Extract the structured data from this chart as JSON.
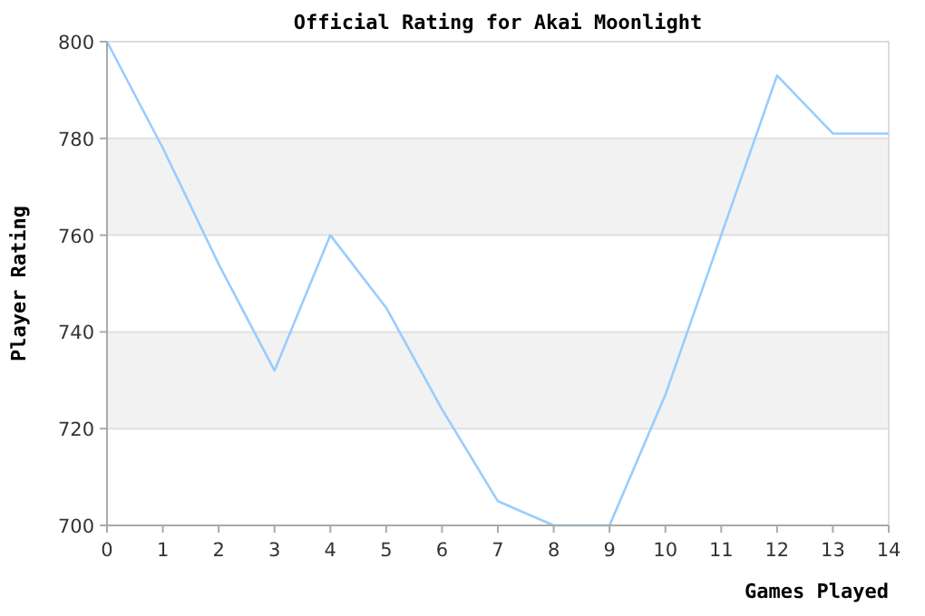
{
  "chart_data": {
    "type": "line",
    "title": "Official Rating for Akai Moonlight",
    "xlabel": "Games Played",
    "ylabel": "Player Rating",
    "x": [
      0,
      1,
      2,
      3,
      4,
      5,
      6,
      7,
      8,
      9,
      10,
      11,
      12,
      13,
      14
    ],
    "series": [
      {
        "color": "#99ccff",
        "values": [
          800,
          778,
          754,
          732,
          760,
          745,
          724,
          705,
          700,
          700,
          727,
          760,
          793,
          781,
          781
        ]
      }
    ],
    "xlim": [
      0,
      14
    ],
    "xticks": [
      0,
      1,
      2,
      3,
      4,
      5,
      6,
      7,
      8,
      9,
      10,
      11,
      12,
      13,
      14
    ],
    "ylim": [
      700,
      800
    ],
    "yticks": [
      700,
      720,
      740,
      760,
      780,
      800
    ],
    "grid": "y",
    "marker": "none",
    "line_style": "solid",
    "bands": [
      {
        "axis": "y",
        "from": 720,
        "to": 740,
        "color": "#f2f2f2"
      },
      {
        "axis": "y",
        "from": 760,
        "to": 780,
        "color": "#f2f2f2"
      }
    ]
  }
}
